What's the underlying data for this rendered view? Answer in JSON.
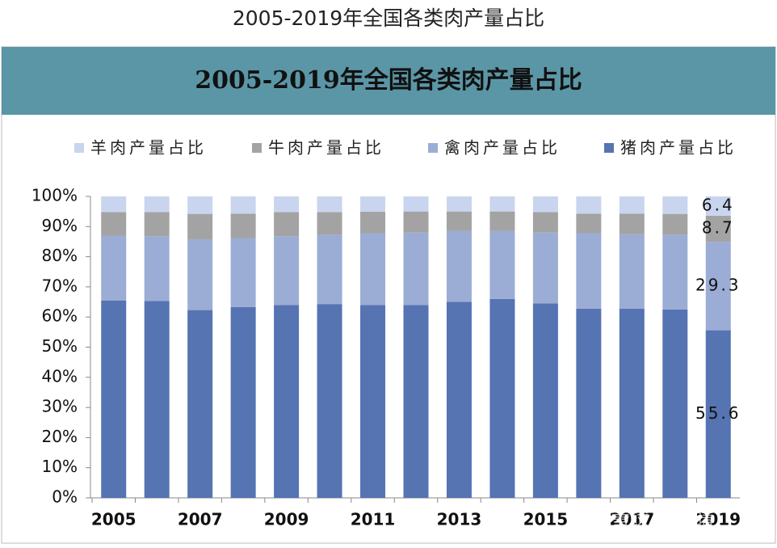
{
  "chart_data": {
    "type": "stacked_bar",
    "title": "2005-2019年全国各类肉产量占比",
    "subtitle": "2005-2019年全国各类肉产量占比",
    "categories": [
      "2005",
      null,
      "2007",
      null,
      "2009",
      null,
      "2011",
      null,
      "2013",
      null,
      "2015",
      null,
      "2017",
      null,
      "2019"
    ],
    "series": [
      {
        "name": "猪肉产量占比",
        "color": "#5673b2",
        "values": [
          65.5,
          65.3,
          62.3,
          63.3,
          64.0,
          64.3,
          64.0,
          64.0,
          65.0,
          66.0,
          64.5,
          62.8,
          62.8,
          62.5,
          55.6
        ]
      },
      {
        "name": "禽肉产量占比",
        "color": "#9badd5",
        "values": [
          21.5,
          21.5,
          23.5,
          22.9,
          22.8,
          22.9,
          23.8,
          24.0,
          23.5,
          22.5,
          23.5,
          25.0,
          24.7,
          24.8,
          29.3
        ]
      },
      {
        "name": "牛肉产量占比",
        "color": "#a3a3a3",
        "values": [
          7.8,
          8.0,
          8.4,
          8.1,
          8.0,
          7.6,
          7.1,
          7.0,
          6.5,
          6.5,
          6.8,
          6.5,
          6.8,
          6.9,
          8.7
        ]
      },
      {
        "name": "羊肉产量占比",
        "color": "#c9d5ee",
        "values": [
          5.2,
          5.2,
          5.8,
          5.7,
          5.2,
          5.2,
          5.1,
          5.0,
          5.0,
          5.0,
          5.2,
          5.7,
          5.7,
          5.8,
          6.4
        ]
      }
    ],
    "ylim": [
      0,
      100
    ],
    "yticks": [
      {
        "value": 0,
        "label": "0%"
      },
      {
        "value": 10,
        "label": "10%"
      },
      {
        "value": 20,
        "label": "20%"
      },
      {
        "value": 30,
        "label": "30%"
      },
      {
        "value": 40,
        "label": "40%"
      },
      {
        "value": 50,
        "label": "50%"
      },
      {
        "value": 60,
        "label": "60%"
      },
      {
        "value": 70,
        "label": "70%"
      },
      {
        "value": 80,
        "label": "80%"
      },
      {
        "value": 90,
        "label": "90%"
      },
      {
        "value": 100,
        "label": "100%"
      }
    ],
    "data_labels": "last",
    "legend": "top",
    "watermark": "雪球 马牧晴"
  }
}
